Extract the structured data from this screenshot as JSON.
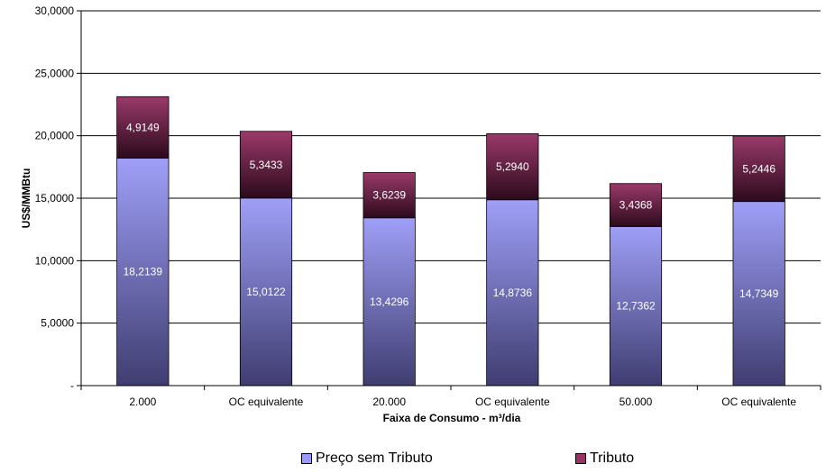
{
  "chart_data": {
    "type": "bar",
    "stacked": true,
    "categories": [
      "2.000",
      "OC equivalente",
      "20.000",
      "OC equivalente",
      "50.000",
      "OC equivalente"
    ],
    "series": [
      {
        "name": "Preço sem Tributo",
        "values": [
          18.2139,
          15.0122,
          13.4296,
          14.8736,
          12.7362,
          14.7349
        ],
        "labels": [
          "18,2139",
          "15,0122",
          "13,4296",
          "14,8736",
          "12,7362",
          "14,7349"
        ],
        "color": "#9999FF"
      },
      {
        "name": "Tributo",
        "values": [
          4.9149,
          5.3433,
          3.6239,
          5.294,
          3.4368,
          5.2446
        ],
        "labels": [
          "4,9149",
          "5,3433",
          "3,6239",
          "5,2940",
          "3,4368",
          "5,2446"
        ],
        "color": "#993366"
      }
    ],
    "xlabel": "Faixa de Consumo - m³/dia",
    "ylabel": "US$/MMBtu",
    "ylim": [
      0,
      30
    ],
    "yticks": [
      0,
      5,
      10,
      15,
      20,
      25,
      30
    ],
    "ytick_labels": [
      "-",
      "5,0000",
      "10,0000",
      "15,0000",
      "20,0000",
      "25,0000",
      "30,0000"
    ],
    "grid": true,
    "legend_position": "bottom"
  }
}
